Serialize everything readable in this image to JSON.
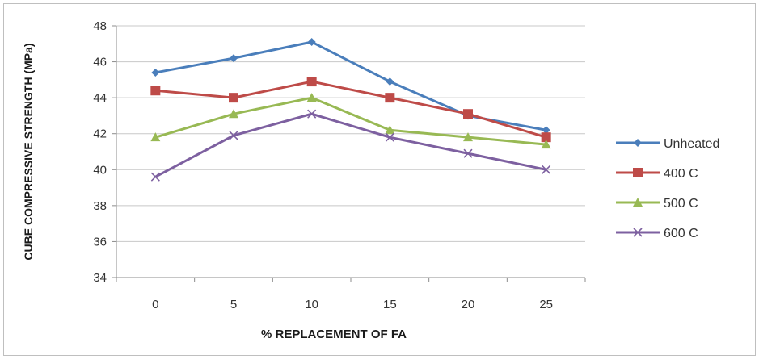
{
  "chart_data": {
    "type": "line",
    "title": "",
    "xlabel": "% REPLACEMENT OF FA",
    "ylabel": "CUBE COMPRESSIVE STRENGTH (MPa)",
    "categories": [
      "0",
      "5",
      "10",
      "15",
      "20",
      "25"
    ],
    "ylim": [
      34,
      48
    ],
    "yticks": [
      "34",
      "36",
      "38",
      "40",
      "42",
      "44",
      "46",
      "48"
    ],
    "grid": "horizontal",
    "legend_position": "right",
    "series": [
      {
        "name": "Unheated",
        "color": "#4a7ebb",
        "marker": "diamond",
        "values": [
          45.4,
          46.2,
          47.1,
          44.9,
          43.0,
          42.2
        ]
      },
      {
        "name": "400 C",
        "color": "#be4b48",
        "marker": "square",
        "values": [
          44.4,
          44.0,
          44.9,
          44.0,
          43.1,
          41.8
        ]
      },
      {
        "name": "500 C",
        "color": "#98b954",
        "marker": "triangle",
        "values": [
          41.8,
          43.1,
          44.0,
          42.2,
          41.8,
          41.4
        ]
      },
      {
        "name": "600 C",
        "color": "#7d60a0",
        "marker": "x",
        "values": [
          39.6,
          41.9,
          43.1,
          41.8,
          40.9,
          40.0
        ]
      }
    ]
  }
}
